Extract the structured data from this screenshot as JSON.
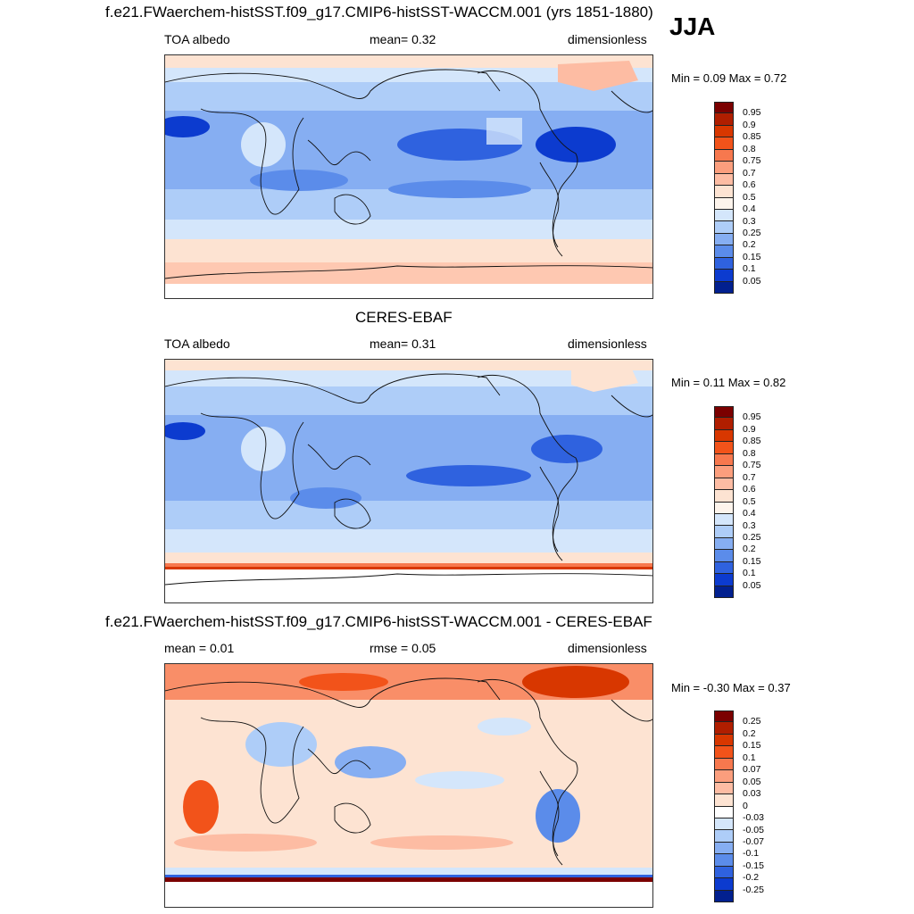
{
  "season": "JJA",
  "panels": [
    {
      "title": "f.e21.FWaerchem-histSST.f09_g17.CMIP6-histSST-WACCM.001 (yrs 1851-1880)",
      "left_label": "TOA albedo",
      "center_label": "mean=   0.32",
      "right_label": "dimensionless",
      "minmax": "Min =   0.09 Max =   0.72",
      "colorbar": {
        "labels": [
          "0.95",
          "0.9",
          "0.85",
          "0.8",
          "0.75",
          "0.7",
          "0.6",
          "0.5",
          "0.4",
          "0.3",
          "0.25",
          "0.2",
          "0.15",
          "0.1",
          "0.05"
        ],
        "colors": [
          "#7b0000",
          "#b01e00",
          "#d83700",
          "#f2531a",
          "#f7784e",
          "#fb9e7d",
          "#fdbca3",
          "#fde3d2",
          "#fdf4ec",
          "#d4e6fb",
          "#aecdf8",
          "#86aef2",
          "#5b8cea",
          "#2f62df",
          "#0c3bcf",
          "#02208f"
        ]
      }
    },
    {
      "title": "CERES-EBAF",
      "left_label": "TOA albedo",
      "center_label": "mean=   0.31",
      "right_label": "dimensionless",
      "minmax": "Min =   0.11 Max =   0.82",
      "colorbar": {
        "labels": [
          "0.95",
          "0.9",
          "0.85",
          "0.8",
          "0.75",
          "0.7",
          "0.6",
          "0.5",
          "0.4",
          "0.3",
          "0.25",
          "0.2",
          "0.15",
          "0.1",
          "0.05"
        ],
        "colors": [
          "#7b0000",
          "#b01e00",
          "#d83700",
          "#f2531a",
          "#f7784e",
          "#fb9e7d",
          "#fdbca3",
          "#fde3d2",
          "#fdf4ec",
          "#d4e6fb",
          "#aecdf8",
          "#86aef2",
          "#5b8cea",
          "#2f62df",
          "#0c3bcf",
          "#02208f"
        ]
      }
    },
    {
      "title": "f.e21.FWaerchem-histSST.f09_g17.CMIP6-histSST-WACCM.001 - CERES-EBAF",
      "left_label": "mean =   0.01",
      "center_label": "rmse =   0.05",
      "right_label": "dimensionless",
      "minmax": "Min =  -0.30 Max =   0.37",
      "colorbar": {
        "labels": [
          "0.25",
          "0.2",
          "0.15",
          "0.1",
          "0.07",
          "0.05",
          "0.03",
          "0",
          "-0.03",
          "-0.05",
          "-0.07",
          "-0.1",
          "-0.15",
          "-0.2",
          "-0.25"
        ],
        "colors": [
          "#7b0000",
          "#b01e00",
          "#d83700",
          "#f2531a",
          "#f7784e",
          "#fb9e7d",
          "#fdbca3",
          "#fde3d2",
          "#ffffff",
          "#d4e6fb",
          "#aecdf8",
          "#86aef2",
          "#5b8cea",
          "#2f62df",
          "#0c3bcf",
          "#02208f"
        ]
      }
    }
  ]
}
